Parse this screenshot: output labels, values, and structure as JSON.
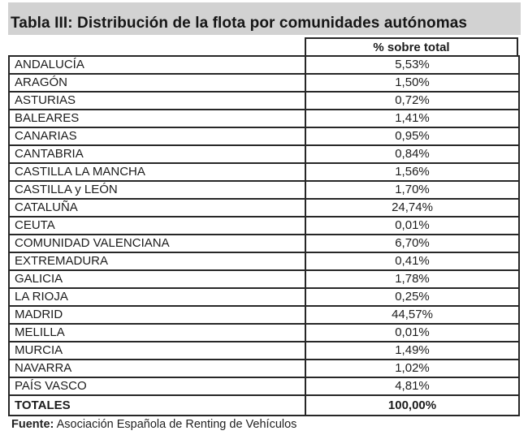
{
  "title": "Tabla III: Distribución de la flota por comunidades autónomas",
  "table": {
    "value_header": "% sobre total",
    "rows": [
      {
        "name": "ANDALUCÍA",
        "value": "5,53%"
      },
      {
        "name": "ARAGÓN",
        "value": "1,50%"
      },
      {
        "name": "ASTURIAS",
        "value": "0,72%"
      },
      {
        "name": "BALEARES",
        "value": "1,41%"
      },
      {
        "name": "CANARIAS",
        "value": "0,95%"
      },
      {
        "name": "CANTABRIA",
        "value": "0,84%"
      },
      {
        "name": "CASTILLA LA MANCHA",
        "value": "1,56%"
      },
      {
        "name": "CASTILLA y LEÓN",
        "value": "1,70%"
      },
      {
        "name": "CATALUÑA",
        "value": "24,74%"
      },
      {
        "name": "CEUTA",
        "value": "0,01%"
      },
      {
        "name": "COMUNIDAD VALENCIANA",
        "value": "6,70%"
      },
      {
        "name": "EXTREMADURA",
        "value": "0,41%"
      },
      {
        "name": "GALICIA",
        "value": "1,78%"
      },
      {
        "name": "LA RIOJA",
        "value": "0,25%"
      },
      {
        "name": "MADRID",
        "value": "44,57%"
      },
      {
        "name": "MELILLA",
        "value": "0,01%"
      },
      {
        "name": "MURCIA",
        "value": "1,49%"
      },
      {
        "name": "NAVARRA",
        "value": "1,02%"
      },
      {
        "name": "PAÍS VASCO",
        "value": "4,81%"
      }
    ],
    "total": {
      "name": "TOTALES",
      "value": "100,00%"
    }
  },
  "footer": {
    "label": "Fuente:",
    "text": "Asociación Española de Renting de Vehículos"
  },
  "colors": {
    "title_bg": "#d2d2d2",
    "border": "#272727",
    "text": "#1c1c1c"
  }
}
